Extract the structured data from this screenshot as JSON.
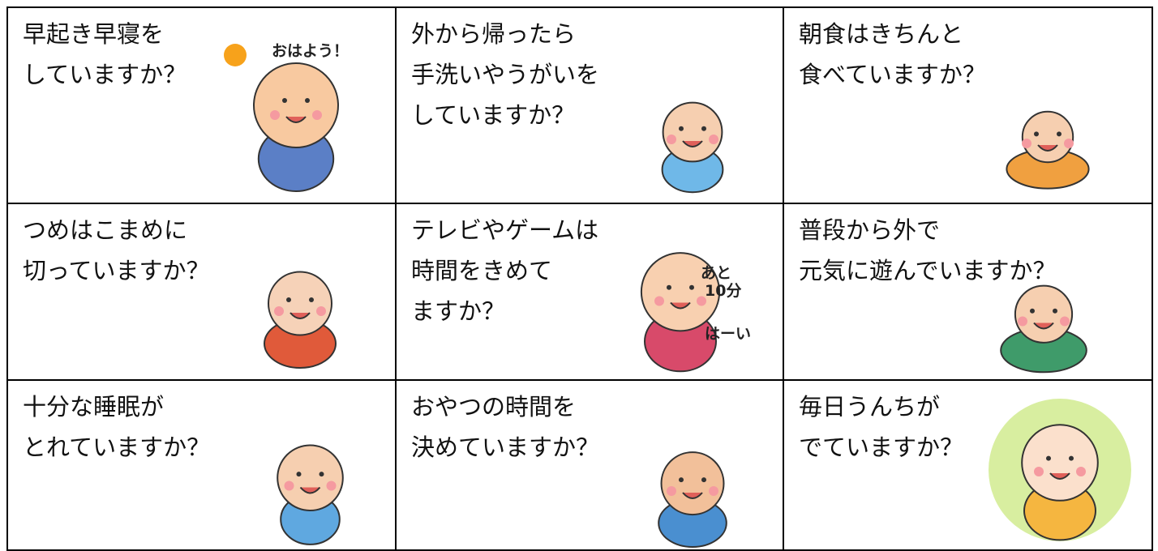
{
  "grid": {
    "cells": [
      {
        "lines": [
          "早起き早寝を",
          "していますか？"
        ],
        "captions": [
          "おはよう！"
        ]
      },
      {
        "lines": [
          "外から帰ったら",
          "手洗いやうがいを",
          "していますか？"
        ]
      },
      {
        "lines": [
          "朝食はきちんと",
          "食べていますか？"
        ]
      },
      {
        "lines": [
          "つめはこまめに",
          "切っていますか？"
        ]
      },
      {
        "lines": [
          "テレビやゲームは",
          "時間をきめて",
          "ますか？"
        ],
        "captions": [
          "あと",
          "10分",
          "はーい"
        ]
      },
      {
        "lines": [
          "普段から外で",
          "元気に遊んでいますか？"
        ]
      },
      {
        "lines": [
          "十分な睡眠が",
          "とれていますか？"
        ]
      },
      {
        "lines": [
          "おやつの時間を",
          "決めていますか？"
        ]
      },
      {
        "lines": [
          "毎日うんちが",
          "でていますか？"
        ]
      }
    ]
  }
}
